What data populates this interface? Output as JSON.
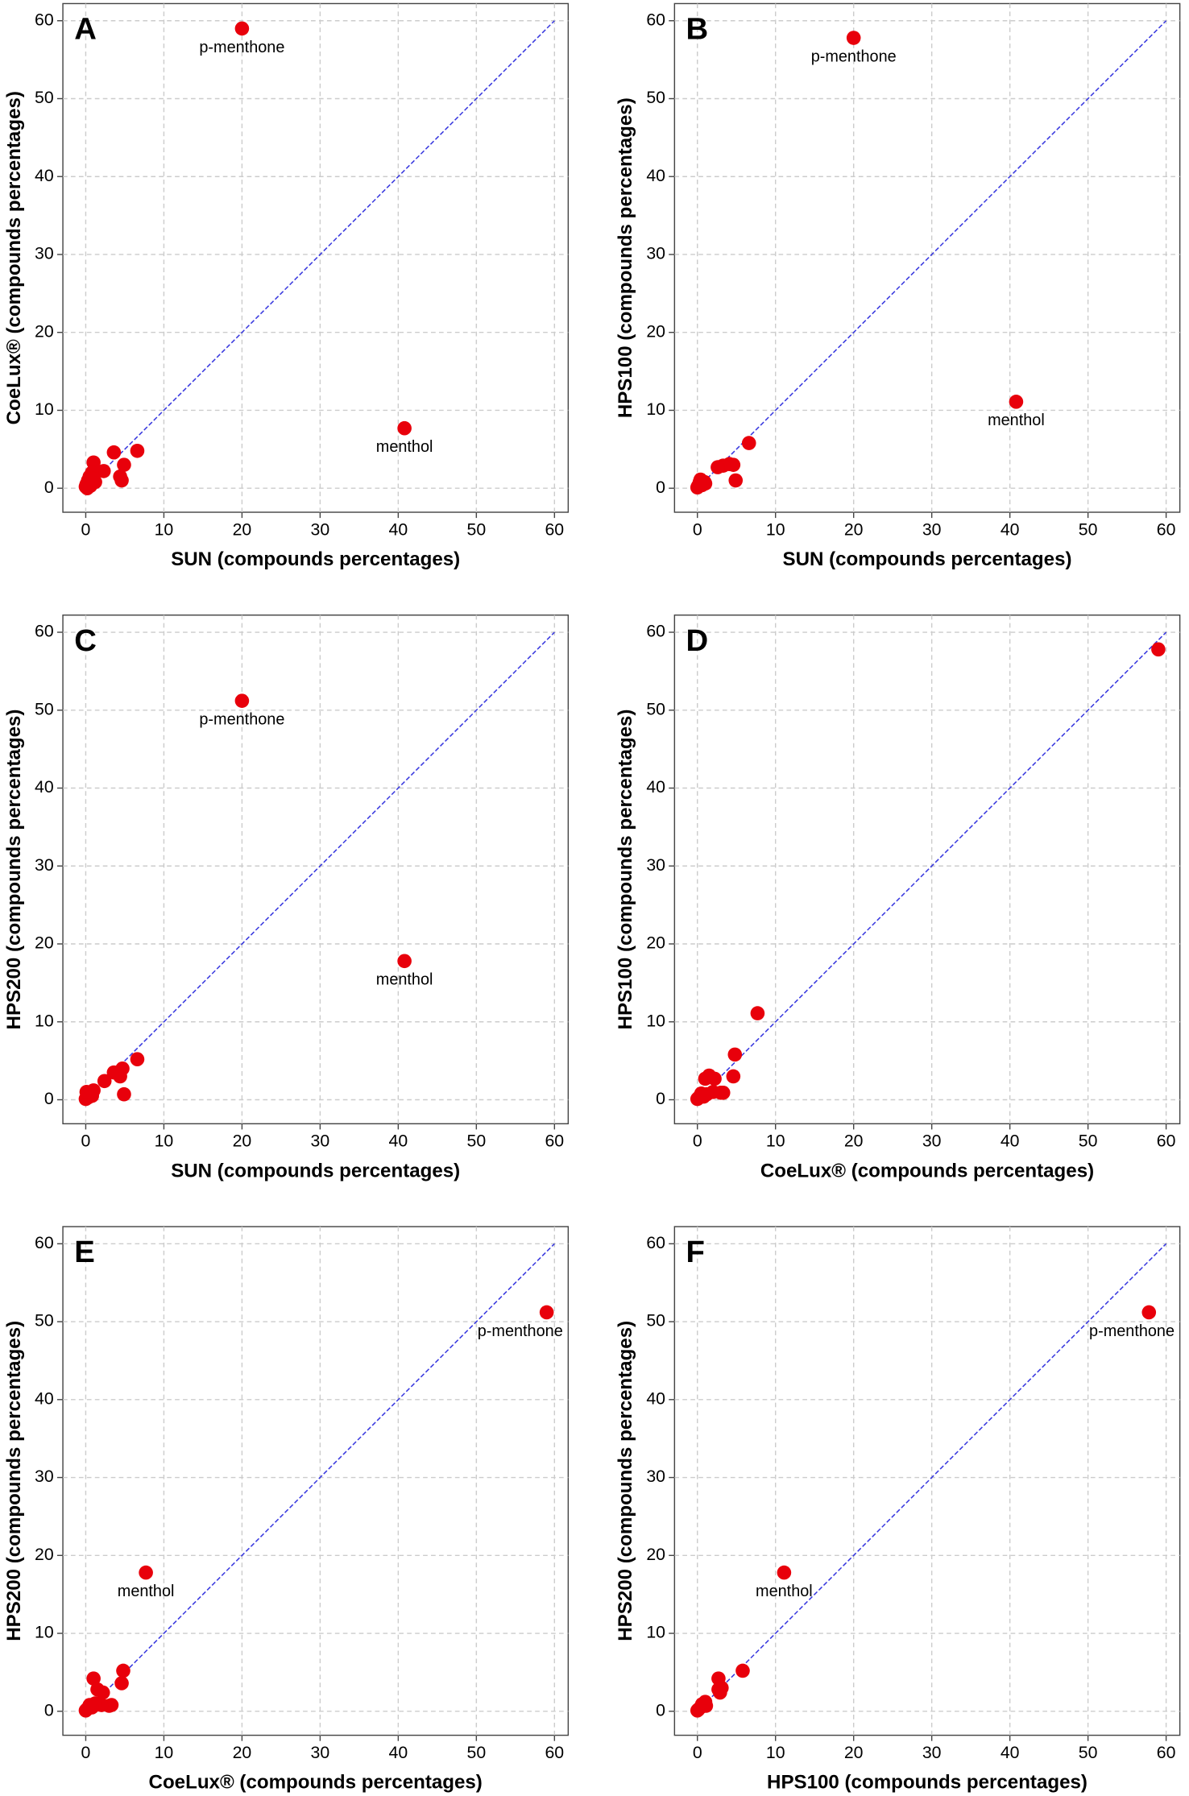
{
  "chart_data": [
    {
      "type": "scatter",
      "panel": "A",
      "xlabel": "SUN (compounds percentages)",
      "ylabel": "CoeLux® (compounds percentages)",
      "x": [
        20,
        40.8,
        6.6,
        3.6,
        4.9,
        4.4,
        4.6,
        2.3,
        1,
        0.8,
        0.5,
        0.3,
        0.1,
        0,
        1.2,
        0.6,
        0.2,
        1
      ],
      "y": [
        59,
        7.7,
        4.8,
        4.6,
        3,
        1.5,
        1,
        2.2,
        3.3,
        2,
        1.5,
        1,
        0.5,
        0.2,
        0.8,
        0.3,
        0,
        1.2
      ],
      "annotations": [
        {
          "text": "p-menthone",
          "x": 20,
          "y": 59
        },
        {
          "text": "menthol",
          "x": 40.8,
          "y": 7.7
        }
      ],
      "color": "#e8000b",
      "diagonal": true,
      "diagonal_color": "#3a3adf",
      "grid": true,
      "xlim": [
        0,
        60
      ],
      "ylim": [
        0,
        60
      ],
      "xticks": [
        0,
        10,
        20,
        30,
        40,
        50,
        60
      ],
      "yticks": [
        0,
        10,
        20,
        30,
        40,
        50,
        60
      ]
    },
    {
      "type": "scatter",
      "panel": "B",
      "xlabel": "SUN (compounds percentages)",
      "ylabel": "HPS100 (compounds percentages)",
      "x": [
        20,
        40.8,
        6.6,
        4.9,
        4.6,
        4.1,
        3.3,
        2.6,
        0.9,
        0.4,
        0.1,
        0,
        0.6,
        1,
        0.3
      ],
      "y": [
        57.8,
        11.1,
        5.8,
        1,
        3,
        3.1,
        2.9,
        2.7,
        0.8,
        1.1,
        0.3,
        0.1,
        0.4,
        0.6,
        0.8
      ],
      "annotations": [
        {
          "text": "p-menthone",
          "x": 20,
          "y": 57.8
        },
        {
          "text": "menthol",
          "x": 40.8,
          "y": 11.1
        }
      ],
      "color": "#e8000b",
      "diagonal": true,
      "diagonal_color": "#3a3adf",
      "grid": true,
      "xlim": [
        0,
        60
      ],
      "ylim": [
        0,
        60
      ],
      "xticks": [
        0,
        10,
        20,
        30,
        40,
        50,
        60
      ],
      "yticks": [
        0,
        10,
        20,
        30,
        40,
        50,
        60
      ]
    },
    {
      "type": "scatter",
      "panel": "C",
      "xlabel": "SUN (compounds percentages)",
      "ylabel": "HPS200 (compounds percentages)",
      "x": [
        20,
        40.8,
        6.6,
        4.7,
        4.4,
        3.6,
        2.4,
        4.9,
        1,
        0.6,
        0.3,
        0,
        0.2,
        0.8,
        0.1
      ],
      "y": [
        51.2,
        17.8,
        5.2,
        4,
        3,
        3.5,
        2.4,
        0.7,
        1.2,
        0.8,
        0.3,
        0.1,
        0.6,
        0.5,
        1
      ],
      "annotations": [
        {
          "text": "p-menthone",
          "x": 20,
          "y": 51.2
        },
        {
          "text": "menthol",
          "x": 40.8,
          "y": 17.8
        }
      ],
      "color": "#e8000b",
      "diagonal": true,
      "diagonal_color": "#3a3adf",
      "grid": true,
      "xlim": [
        0,
        60
      ],
      "ylim": [
        0,
        60
      ],
      "xticks": [
        0,
        10,
        20,
        30,
        40,
        50,
        60
      ],
      "yticks": [
        0,
        10,
        20,
        30,
        40,
        50,
        60
      ]
    },
    {
      "type": "scatter",
      "panel": "D",
      "xlabel": "CoeLux® (compounds percentages)",
      "ylabel": "HPS100 (compounds percentages)",
      "x": [
        59,
        7.7,
        4.8,
        4.6,
        3,
        1.5,
        1,
        2.2,
        3.3,
        2,
        0.5,
        0.2,
        0,
        1.2,
        0.8
      ],
      "y": [
        57.8,
        11.1,
        5.8,
        3,
        0.9,
        3.1,
        2.7,
        2.7,
        0.9,
        1,
        0.8,
        0.3,
        0.1,
        0.7,
        0.4
      ],
      "annotations": [],
      "color": "#e8000b",
      "diagonal": true,
      "diagonal_color": "#3a3adf",
      "grid": true,
      "xlim": [
        0,
        60
      ],
      "ylim": [
        0,
        60
      ],
      "xticks": [
        0,
        10,
        20,
        30,
        40,
        50,
        60
      ],
      "yticks": [
        0,
        10,
        20,
        30,
        40,
        50,
        60
      ]
    },
    {
      "type": "scatter",
      "panel": "E",
      "xlabel": "CoeLux® (compounds percentages)",
      "ylabel": "HPS200 (compounds percentages)",
      "x": [
        59,
        7.7,
        4.8,
        4.6,
        1,
        1.5,
        2.2,
        3.3,
        3,
        2,
        0.5,
        0.2,
        0,
        1.2,
        0.8
      ],
      "y": [
        51.2,
        17.8,
        5.2,
        3.6,
        4.2,
        2.8,
        2.4,
        0.8,
        0.7,
        0.8,
        0.8,
        0.3,
        0.1,
        1,
        0.5
      ],
      "annotations": [
        {
          "text": "p-menthone",
          "x": 59,
          "y": 51.2
        },
        {
          "text": "menthol",
          "x": 7.7,
          "y": 17.8
        }
      ],
      "color": "#e8000b",
      "diagonal": true,
      "diagonal_color": "#3a3adf",
      "grid": true,
      "xlim": [
        0,
        60
      ],
      "ylim": [
        0,
        60
      ],
      "xticks": [
        0,
        10,
        20,
        30,
        40,
        50,
        60
      ],
      "yticks": [
        0,
        10,
        20,
        30,
        40,
        50,
        60
      ]
    },
    {
      "type": "scatter",
      "panel": "F",
      "xlabel": "HPS100 (compounds percentages)",
      "ylabel": "HPS200 (compounds percentages)",
      "x": [
        57.8,
        11.1,
        5.8,
        3.1,
        2.7,
        2.9,
        2.7,
        1,
        0.8,
        0.4,
        0.1,
        0,
        0.6,
        1.1
      ],
      "y": [
        51.2,
        17.8,
        5.2,
        3,
        4.2,
        2.4,
        2.8,
        1.2,
        0.8,
        0.5,
        0.2,
        0.1,
        0.9,
        0.7
      ],
      "annotations": [
        {
          "text": "p-menthone",
          "x": 57.8,
          "y": 51.2
        },
        {
          "text": "menthol",
          "x": 11.1,
          "y": 17.8
        }
      ],
      "color": "#e8000b",
      "diagonal": true,
      "diagonal_color": "#3a3adf",
      "grid": true,
      "xlim": [
        0,
        60
      ],
      "ylim": [
        0,
        60
      ],
      "xticks": [
        0,
        10,
        20,
        30,
        40,
        50,
        60
      ],
      "yticks": [
        0,
        10,
        20,
        30,
        40,
        50,
        60
      ]
    }
  ]
}
